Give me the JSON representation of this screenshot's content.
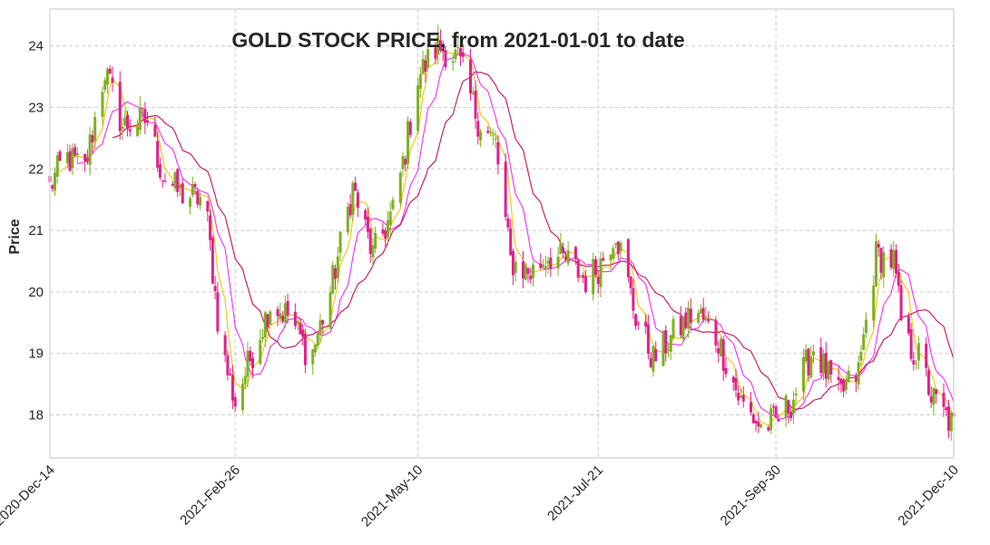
{
  "chart_data": {
    "type": "candlestick",
    "title": "GOLD STOCK PRICE, from 2021-01-01 to date",
    "ylabel": "Price",
    "xlabel": "",
    "ylim": [
      17.3,
      24.6
    ],
    "yticks": [
      18,
      19,
      20,
      21,
      22,
      23,
      24
    ],
    "xticks": [
      "2020-Dec-14",
      "2021-Feb-26",
      "2021-May-10",
      "2021-Jul-21",
      "2021-Sep-30",
      "2021-Dec-10"
    ],
    "grid": true,
    "colors": {
      "up": "#7fb020",
      "down": "#e0208a",
      "ma_short": "#f5c20a",
      "ma_mid": "#f030f0",
      "ma_long": "#c8105a",
      "grid": "#cccccc",
      "frame": "#d9d9d9"
    },
    "close_trajectory": [
      {
        "date": "2020-Dec-14",
        "price": 21.7
      },
      {
        "date": "2020-Dec-20",
        "price": 22.2
      },
      {
        "date": "2020-Dec-28",
        "price": 22.0
      },
      {
        "date": "2021-Jan-05",
        "price": 23.6
      },
      {
        "date": "2021-Jan-12",
        "price": 22.7
      },
      {
        "date": "2021-Jan-22",
        "price": 22.8
      },
      {
        "date": "2021-Jan-28",
        "price": 21.9
      },
      {
        "date": "2021-Feb-04",
        "price": 21.6
      },
      {
        "date": "2021-Feb-14",
        "price": 21.5
      },
      {
        "date": "2021-Feb-20",
        "price": 19.2
      },
      {
        "date": "2021-Feb-26",
        "price": 18.2
      },
      {
        "date": "2021-Mar-03",
        "price": 18.8
      },
      {
        "date": "2021-Mar-12",
        "price": 19.8
      },
      {
        "date": "2021-Mar-20",
        "price": 19.6
      },
      {
        "date": "2021-Mar-28",
        "price": 18.9
      },
      {
        "date": "2021-Apr-05",
        "price": 20.0
      },
      {
        "date": "2021-Apr-14",
        "price": 21.7
      },
      {
        "date": "2021-Apr-22",
        "price": 20.6
      },
      {
        "date": "2021-Apr-30",
        "price": 21.3
      },
      {
        "date": "2021-May-05",
        "price": 22.3
      },
      {
        "date": "2021-May-10",
        "price": 23.5
      },
      {
        "date": "2021-May-18",
        "price": 24.0
      },
      {
        "date": "2021-May-26",
        "price": 23.8
      },
      {
        "date": "2021-Jun-03",
        "price": 22.8
      },
      {
        "date": "2021-Jun-10",
        "price": 22.4
      },
      {
        "date": "2021-Jun-16",
        "price": 20.5
      },
      {
        "date": "2021-Jun-24",
        "price": 20.3
      },
      {
        "date": "2021-Jul-01",
        "price": 20.6
      },
      {
        "date": "2021-Jul-09",
        "price": 20.5
      },
      {
        "date": "2021-Jul-16",
        "price": 20.2
      },
      {
        "date": "2021-Jul-21",
        "price": 20.4
      },
      {
        "date": "2021-Jul-28",
        "price": 21.0
      },
      {
        "date": "2021-Aug-05",
        "price": 19.6
      },
      {
        "date": "2021-Aug-12",
        "price": 18.9
      },
      {
        "date": "2021-Aug-20",
        "price": 19.3
      },
      {
        "date": "2021-Aug-29",
        "price": 19.7
      },
      {
        "date": "2021-Sep-07",
        "price": 19.2
      },
      {
        "date": "2021-Sep-16",
        "price": 18.2
      },
      {
        "date": "2021-Sep-24",
        "price": 17.8
      },
      {
        "date": "2021-Sep-30",
        "price": 17.9
      },
      {
        "date": "2021-Oct-06",
        "price": 18.2
      },
      {
        "date": "2021-Oct-15",
        "price": 19.1
      },
      {
        "date": "2021-Oct-25",
        "price": 18.3
      },
      {
        "date": "2021-Nov-02",
        "price": 18.7
      },
      {
        "date": "2021-Nov-09",
        "price": 20.6
      },
      {
        "date": "2021-Nov-16",
        "price": 20.5
      },
      {
        "date": "2021-Nov-20",
        "price": 19.2
      },
      {
        "date": "2021-Nov-27",
        "price": 18.9
      },
      {
        "date": "2021-Dec-01",
        "price": 18.3
      },
      {
        "date": "2021-Dec-10",
        "price": 17.8
      }
    ]
  }
}
